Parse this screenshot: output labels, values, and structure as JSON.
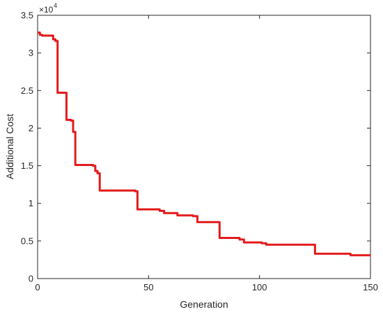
{
  "chart_data": {
    "type": "line",
    "xlabel": "Generation",
    "ylabel": "Additional Cost",
    "xlim": [
      0,
      150
    ],
    "ylim": [
      0,
      35000
    ],
    "xticks": [
      0,
      50,
      100,
      150
    ],
    "yticks": [
      0,
      5000,
      10000,
      15000,
      20000,
      25000,
      30000,
      35000
    ],
    "ytick_labels": [
      "0",
      "0.5",
      "1",
      "1.5",
      "2",
      "2.5",
      "3",
      "3.5"
    ],
    "y_exponent_base": "×10",
    "y_exponent_power": "4",
    "grid": false,
    "series": [
      {
        "color": "#e31a1c",
        "step": "post",
        "x": [
          0,
          1,
          2,
          7,
          8,
          9,
          12,
          13,
          15,
          16,
          17,
          25,
          26,
          27,
          28,
          37,
          44,
          45,
          51,
          55,
          57,
          61,
          63,
          70,
          72,
          82,
          89,
          91,
          93,
          101,
          103,
          123,
          125,
          139,
          141,
          150
        ],
        "y": [
          32700,
          32400,
          32300,
          31800,
          31600,
          24700,
          24700,
          21100,
          21000,
          19500,
          15100,
          15000,
          14300,
          14000,
          11700,
          11700,
          11600,
          9200,
          9200,
          9000,
          8700,
          8700,
          8400,
          8300,
          7500,
          5400,
          5400,
          5200,
          4800,
          4700,
          4500,
          4500,
          3300,
          3300,
          3100,
          3100
        ]
      }
    ]
  }
}
